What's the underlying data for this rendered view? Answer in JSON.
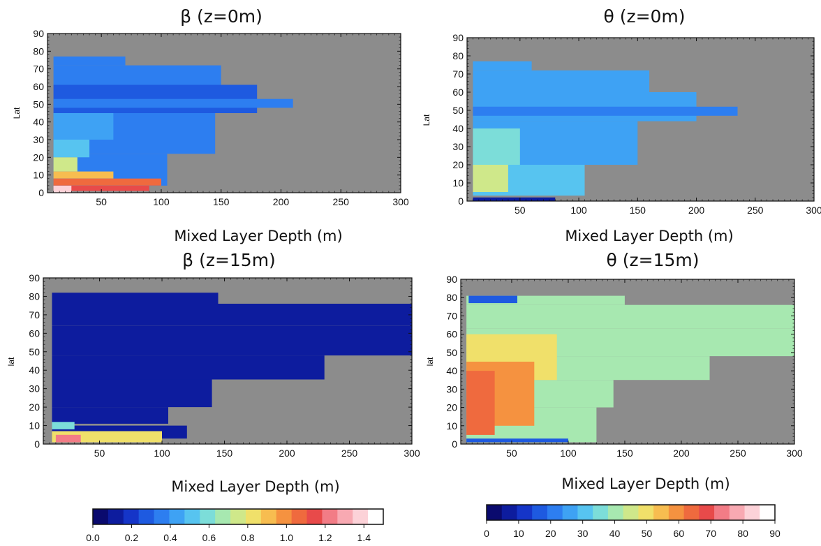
{
  "chart_data": [
    {
      "type": "heatmap",
      "title": "β (z=0m)",
      "xlabel": "Mixed Layer Depth (m)",
      "ylabel": "Lat",
      "xticks": [
        50,
        100,
        150,
        200,
        250,
        300
      ],
      "yticks": [
        0,
        10,
        20,
        30,
        40,
        50,
        60,
        70,
        80,
        90
      ],
      "xlim": [
        5,
        300
      ],
      "ylim": [
        0,
        90
      ],
      "colorbar": "beta",
      "background": "#8c8c8c",
      "regions": [
        {
          "x": [
            10,
            70
          ],
          "y": [
            72,
            77
          ],
          "value": 0.35
        },
        {
          "x": [
            10,
            150
          ],
          "y": [
            61,
            72
          ],
          "value": 0.33
        },
        {
          "x": [
            10,
            180
          ],
          "y": [
            45,
            61
          ],
          "value": 0.3
        },
        {
          "x": [
            10,
            210
          ],
          "y": [
            48,
            53
          ],
          "value": 0.32
        },
        {
          "x": [
            10,
            145
          ],
          "y": [
            22,
            45
          ],
          "value": 0.33
        },
        {
          "x": [
            10,
            105
          ],
          "y": [
            4,
            22
          ],
          "value": 0.38
        },
        {
          "x": [
            10,
            60
          ],
          "y": [
            30,
            45
          ],
          "value": 0.42
        },
        {
          "x": [
            10,
            40
          ],
          "y": [
            20,
            30
          ],
          "value": 0.55
        },
        {
          "x": [
            10,
            30
          ],
          "y": [
            12,
            20
          ],
          "value": 0.75
        },
        {
          "x": [
            10,
            60
          ],
          "y": [
            8,
            12
          ],
          "value": 0.9
        },
        {
          "x": [
            10,
            100
          ],
          "y": [
            4,
            8
          ],
          "value": 1.05
        },
        {
          "x": [
            10,
            90
          ],
          "y": [
            1,
            4
          ],
          "value": 1.15
        },
        {
          "x": [
            10,
            25
          ],
          "y": [
            0,
            4
          ],
          "value": 1.4
        }
      ]
    },
    {
      "type": "heatmap",
      "title": "θ (z=0m)",
      "xlabel": "Mixed Layer Depth (m)",
      "ylabel": "Lat",
      "xticks": [
        50,
        100,
        150,
        200,
        250,
        300
      ],
      "yticks": [
        0,
        10,
        20,
        30,
        40,
        50,
        60,
        70,
        80,
        90
      ],
      "xlim": [
        5,
        300
      ],
      "ylim": [
        0,
        90
      ],
      "colorbar": "theta",
      "background": "#8c8c8c",
      "regions": [
        {
          "x": [
            10,
            60
          ],
          "y": [
            72,
            77
          ],
          "value": 25
        },
        {
          "x": [
            10,
            160
          ],
          "y": [
            60,
            72
          ],
          "value": 25
        },
        {
          "x": [
            10,
            200
          ],
          "y": [
            44,
            60
          ],
          "value": 24
        },
        {
          "x": [
            10,
            235
          ],
          "y": [
            47,
            52
          ],
          "value": 22
        },
        {
          "x": [
            10,
            150
          ],
          "y": [
            20,
            44
          ],
          "value": 27
        },
        {
          "x": [
            10,
            105
          ],
          "y": [
            3,
            20
          ],
          "value": 32
        },
        {
          "x": [
            10,
            50
          ],
          "y": [
            20,
            40
          ],
          "value": 36
        },
        {
          "x": [
            10,
            40
          ],
          "y": [
            5,
            20
          ],
          "value": 44
        },
        {
          "x": [
            10,
            80
          ],
          "y": [
            0,
            2
          ],
          "value": 8
        }
      ]
    },
    {
      "type": "heatmap",
      "title": "β (z=15m)",
      "xlabel": "Mixed Layer Depth (m)",
      "ylabel": "lat",
      "xticks": [
        50,
        100,
        150,
        200,
        250,
        300
      ],
      "yticks": [
        0,
        10,
        20,
        30,
        40,
        50,
        60,
        70,
        80,
        90
      ],
      "xlim": [
        5,
        300
      ],
      "ylim": [
        0,
        90
      ],
      "colorbar": "beta",
      "background": "#8c8c8c",
      "regions": [
        {
          "x": [
            12,
            145
          ],
          "y": [
            76,
            82
          ],
          "value": 0.08
        },
        {
          "x": [
            12,
            300
          ],
          "y": [
            64,
            76
          ],
          "value": 0.09
        },
        {
          "x": [
            12,
            300
          ],
          "y": [
            48,
            64
          ],
          "value": 0.1
        },
        {
          "x": [
            12,
            230
          ],
          "y": [
            35,
            48
          ],
          "value": 0.1
        },
        {
          "x": [
            12,
            140
          ],
          "y": [
            20,
            35
          ],
          "value": 0.1
        },
        {
          "x": [
            12,
            105
          ],
          "y": [
            11,
            20
          ],
          "value": 0.11
        },
        {
          "x": [
            12,
            120
          ],
          "y": [
            3,
            10
          ],
          "value": 0.12
        },
        {
          "x": [
            12,
            30
          ],
          "y": [
            8,
            12
          ],
          "value": 0.6
        },
        {
          "x": [
            12,
            100
          ],
          "y": [
            1,
            7
          ],
          "value": 0.8
        },
        {
          "x": [
            15,
            35
          ],
          "y": [
            1,
            5
          ],
          "value": 1.2
        }
      ]
    },
    {
      "type": "heatmap",
      "title": "θ (z=15m)",
      "xlabel": "Mixed Layer Depth (m)",
      "ylabel": "lat",
      "xticks": [
        50,
        100,
        150,
        200,
        250,
        300
      ],
      "yticks": [
        0,
        10,
        20,
        30,
        40,
        50,
        60,
        70,
        80,
        90
      ],
      "xlim": [
        5,
        300
      ],
      "ylim": [
        0,
        90
      ],
      "colorbar": "theta",
      "background": "#8c8c8c",
      "regions": [
        {
          "x": [
            10,
            150
          ],
          "y": [
            76,
            81
          ],
          "value": 38
        },
        {
          "x": [
            10,
            300
          ],
          "y": [
            63,
            76
          ],
          "value": 38
        },
        {
          "x": [
            10,
            300
          ],
          "y": [
            48,
            63
          ],
          "value": 39
        },
        {
          "x": [
            10,
            225
          ],
          "y": [
            35,
            48
          ],
          "value": 39
        },
        {
          "x": [
            10,
            140
          ],
          "y": [
            20,
            35
          ],
          "value": 40
        },
        {
          "x": [
            10,
            125
          ],
          "y": [
            1,
            20
          ],
          "value": 42
        },
        {
          "x": [
            10,
            90
          ],
          "y": [
            35,
            60
          ],
          "value": 52
        },
        {
          "x": [
            10,
            70
          ],
          "y": [
            10,
            45
          ],
          "value": 58
        },
        {
          "x": [
            10,
            35
          ],
          "y": [
            5,
            40
          ],
          "value": 65
        },
        {
          "x": [
            10,
            100
          ],
          "y": [
            1,
            3
          ],
          "value": 15
        },
        {
          "x": [
            12,
            55
          ],
          "y": [
            77,
            81
          ],
          "value": 15
        }
      ]
    }
  ],
  "colorbars": {
    "beta": {
      "ticks": [
        "0.0",
        "0.2",
        "0.4",
        "0.6",
        "0.8",
        "1.0",
        "1.2",
        "1.4"
      ],
      "range": [
        0,
        1.5
      ]
    },
    "theta": {
      "ticks": [
        "0",
        "10",
        "20",
        "30",
        "40",
        "50",
        "60",
        "70",
        "80",
        "90"
      ],
      "range": [
        0,
        90
      ]
    }
  },
  "palette": [
    "#0a0a6e",
    "#0d1c9e",
    "#1535c8",
    "#1e5ae0",
    "#2d7ef0",
    "#3ea2f4",
    "#57c4f0",
    "#7cddd9",
    "#a7e8b0",
    "#cfe88a",
    "#f0e06a",
    "#f7bd50",
    "#f59240",
    "#ef6a3e",
    "#e84a4a",
    "#f27c86",
    "#f8a9b2",
    "#fcd2d8",
    "#ffffff"
  ]
}
